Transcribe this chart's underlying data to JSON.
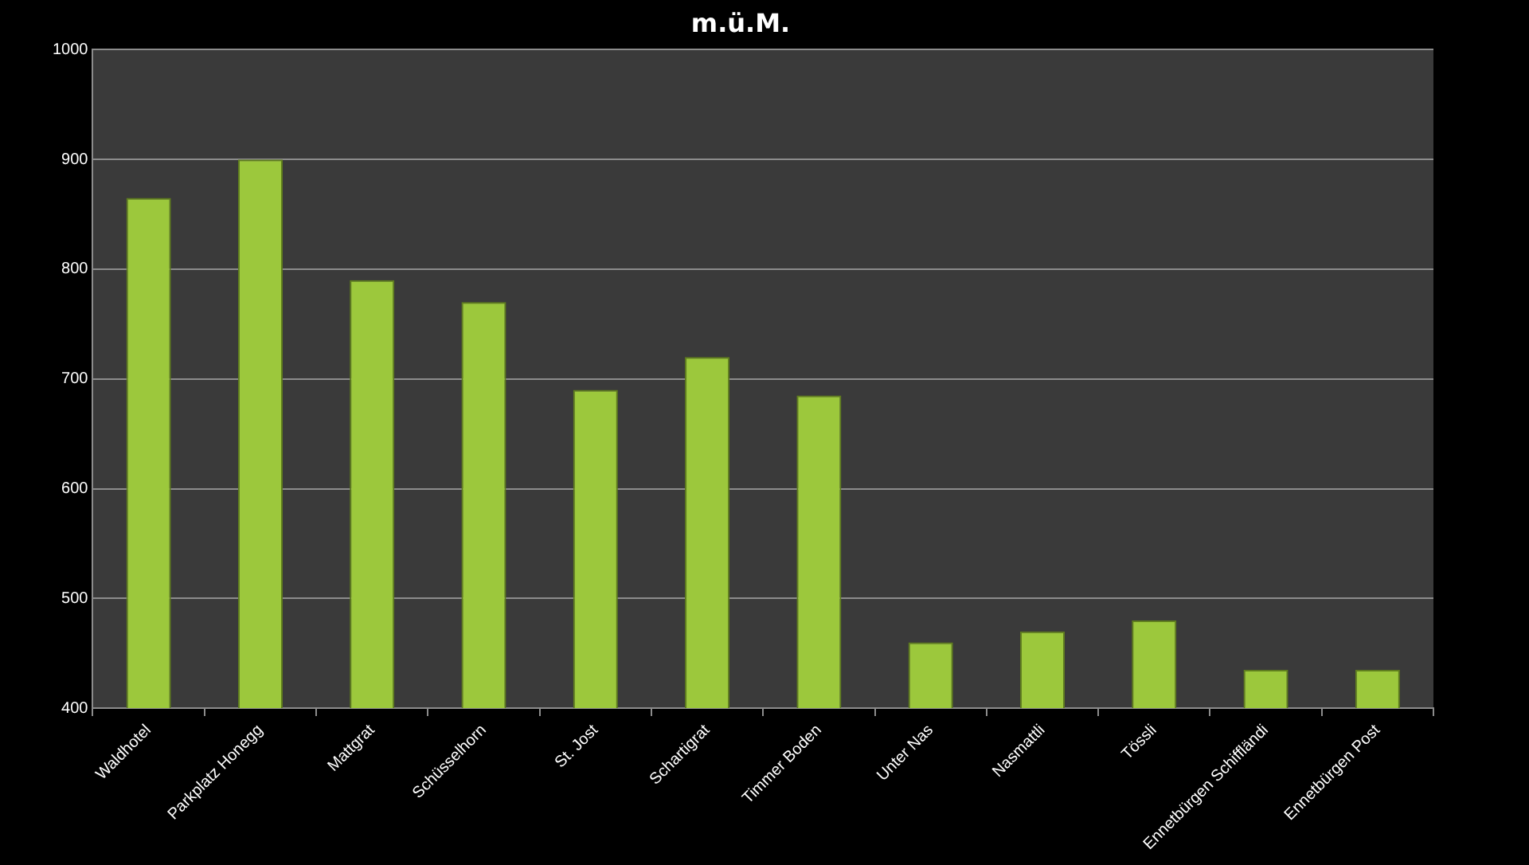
{
  "chart_data": {
    "type": "bar",
    "title": "m.ü.M.",
    "categories": [
      "Waldhotel",
      "Parkplatz Honegg",
      "Mattgrat",
      "Schüsselhorn",
      "St. Jost",
      "Schartigrat",
      "Timmer Boden",
      "Unter Nas",
      "Nasmattli",
      "Tössli",
      "Ennetbürgen Schiffländi",
      "Ennetbürgen Post"
    ],
    "values": [
      865,
      900,
      790,
      770,
      690,
      720,
      685,
      460,
      470,
      480,
      435,
      435
    ],
    "color": "#9cc83c",
    "ylim": [
      400,
      1000
    ],
    "yticks": [
      400,
      500,
      600,
      700,
      800,
      900,
      1000
    ],
    "grid": "y",
    "legend": false
  }
}
